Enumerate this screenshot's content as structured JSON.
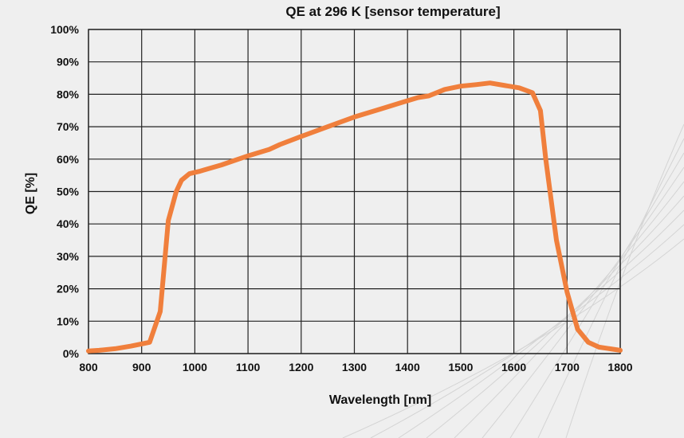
{
  "chart_data": {
    "type": "line",
    "title": "QE at 296 K [sensor temperature]",
    "xlabel": "Wavelength [nm]",
    "ylabel": "QE [%]",
    "xlim": [
      800,
      1800
    ],
    "ylim": [
      0,
      100
    ],
    "x_ticks": [
      800,
      900,
      1000,
      1100,
      1200,
      1300,
      1400,
      1500,
      1600,
      1700,
      1800
    ],
    "y_ticks": [
      0,
      10,
      20,
      30,
      40,
      50,
      60,
      70,
      80,
      90,
      100
    ],
    "y_tick_labels": [
      "0%",
      "10%",
      "20%",
      "30%",
      "40%",
      "50%",
      "60%",
      "70%",
      "80%",
      "90%",
      "100%"
    ],
    "grid": true,
    "series": [
      {
        "color": "#f07f3c",
        "x": [
          800,
          820,
          850,
          880,
          915,
          935,
          950,
          965,
          975,
          990,
          1010,
          1050,
          1100,
          1140,
          1160,
          1200,
          1250,
          1300,
          1350,
          1400,
          1420,
          1440,
          1470,
          1500,
          1530,
          1555,
          1580,
          1610,
          1635,
          1650,
          1660,
          1680,
          1700,
          1720,
          1740,
          1760,
          1780,
          1800
        ],
        "y": [
          0.8,
          1.0,
          1.5,
          2.3,
          3.5,
          13,
          41,
          50,
          53.5,
          55.5,
          56.3,
          58.2,
          61,
          63,
          64.5,
          67,
          70,
          73,
          75.5,
          78,
          79,
          79.5,
          81.5,
          82.5,
          83,
          83.5,
          82.8,
          82,
          80.5,
          75,
          60,
          35,
          19,
          7.5,
          3.5,
          2.0,
          1.5,
          1.0
        ]
      }
    ]
  }
}
